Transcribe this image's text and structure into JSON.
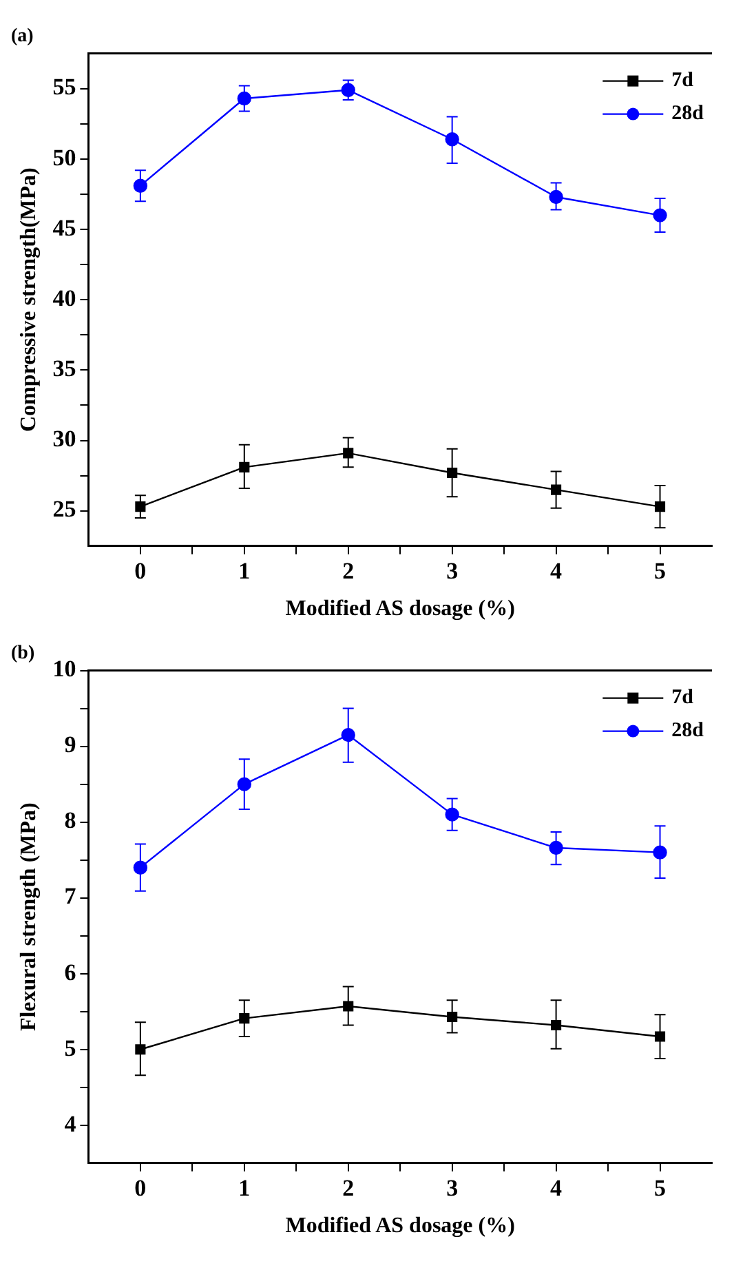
{
  "chart_data": [
    {
      "type": "line",
      "title": "(a)",
      "xlabel": "Modified AS dosage (%)",
      "ylabel": "Compressive strength(MPa)",
      "x": [
        0,
        1,
        2,
        3,
        4,
        5
      ],
      "xlim": [
        -0.5,
        5.5
      ],
      "xticks": [
        0,
        {
          "value": 0.5,
          "label": null
        },
        1,
        {
          "value": 1.5,
          "label": null
        },
        2,
        {
          "value": 2.5,
          "label": null
        },
        3,
        {
          "value": 3.5,
          "label": null
        },
        4,
        {
          "value": 4.5,
          "label": null
        },
        5
      ],
      "ylim": [
        22.5,
        57.5
      ],
      "yticks": [
        25,
        {
          "value": 27.5,
          "label": null
        },
        30,
        {
          "value": 32.5,
          "label": null
        },
        35,
        {
          "value": 37.5,
          "label": null
        },
        40,
        {
          "value": 42.5,
          "label": null
        },
        45,
        {
          "value": 47.5,
          "label": null
        },
        50,
        {
          "value": 52.5,
          "label": null
        },
        55
      ],
      "grid": false,
      "legend": "top right",
      "line_style": "solid",
      "series": [
        {
          "name": "7d",
          "color": "#000000",
          "marker": "square",
          "values": [
            25.3,
            28.1,
            29.1,
            27.7,
            26.5,
            25.3
          ],
          "errors": [
            [
              24.5,
              26.1
            ],
            [
              26.6,
              29.7
            ],
            [
              28.1,
              30.2
            ],
            [
              26.0,
              29.4
            ],
            [
              25.2,
              27.8
            ],
            [
              23.8,
              26.8
            ]
          ]
        },
        {
          "name": "28d",
          "color": "#0000ff",
          "marker": "circle",
          "values": [
            48.1,
            54.3,
            54.9,
            51.4,
            47.3,
            46.0
          ],
          "errors": [
            [
              47.0,
              49.2
            ],
            [
              53.4,
              55.2
            ],
            [
              54.2,
              55.6
            ],
            [
              49.7,
              53.0
            ],
            [
              46.4,
              48.3
            ],
            [
              44.8,
              47.2
            ]
          ]
        }
      ]
    },
    {
      "type": "line",
      "title": "(b)",
      "xlabel": "Modified AS dosage (%)",
      "ylabel": "Flexural strength (MPa)",
      "x": [
        0,
        1,
        2,
        3,
        4,
        5
      ],
      "xlim": [
        -0.5,
        5.5
      ],
      "xticks": [
        0,
        {
          "value": 0.5,
          "label": null
        },
        1,
        {
          "value": 1.5,
          "label": null
        },
        2,
        {
          "value": 2.5,
          "label": null
        },
        3,
        {
          "value": 3.5,
          "label": null
        },
        4,
        {
          "value": 4.5,
          "label": null
        },
        5
      ],
      "ylim": [
        3.5,
        10
      ],
      "yticks": [
        4,
        {
          "value": 4.5,
          "label": null
        },
        5,
        {
          "value": 5.5,
          "label": null
        },
        6,
        {
          "value": 6.5,
          "label": null
        },
        7,
        {
          "value": 7.5,
          "label": null
        },
        8,
        {
          "value": 8.5,
          "label": null
        },
        9,
        {
          "value": 9.5,
          "label": null
        },
        10
      ],
      "grid": false,
      "legend": "top right",
      "line_style": "solid",
      "series": [
        {
          "name": "7d",
          "color": "#000000",
          "marker": "square",
          "values": [
            5.0,
            5.41,
            5.57,
            5.43,
            5.32,
            5.17
          ],
          "errors": [
            [
              4.66,
              5.36
            ],
            [
              5.17,
              5.65
            ],
            [
              5.32,
              5.83
            ],
            [
              5.22,
              5.65
            ],
            [
              5.01,
              5.65
            ],
            [
              4.88,
              5.46
            ]
          ]
        },
        {
          "name": "28d",
          "color": "#0000ff",
          "marker": "circle",
          "values": [
            7.4,
            8.5,
            9.15,
            8.1,
            7.66,
            7.6
          ],
          "errors": [
            [
              7.09,
              7.71
            ],
            [
              8.17,
              8.83
            ],
            [
              8.79,
              9.5
            ],
            [
              7.89,
              8.31
            ],
            [
              7.44,
              7.87
            ],
            [
              7.26,
              7.95
            ]
          ]
        }
      ]
    }
  ]
}
